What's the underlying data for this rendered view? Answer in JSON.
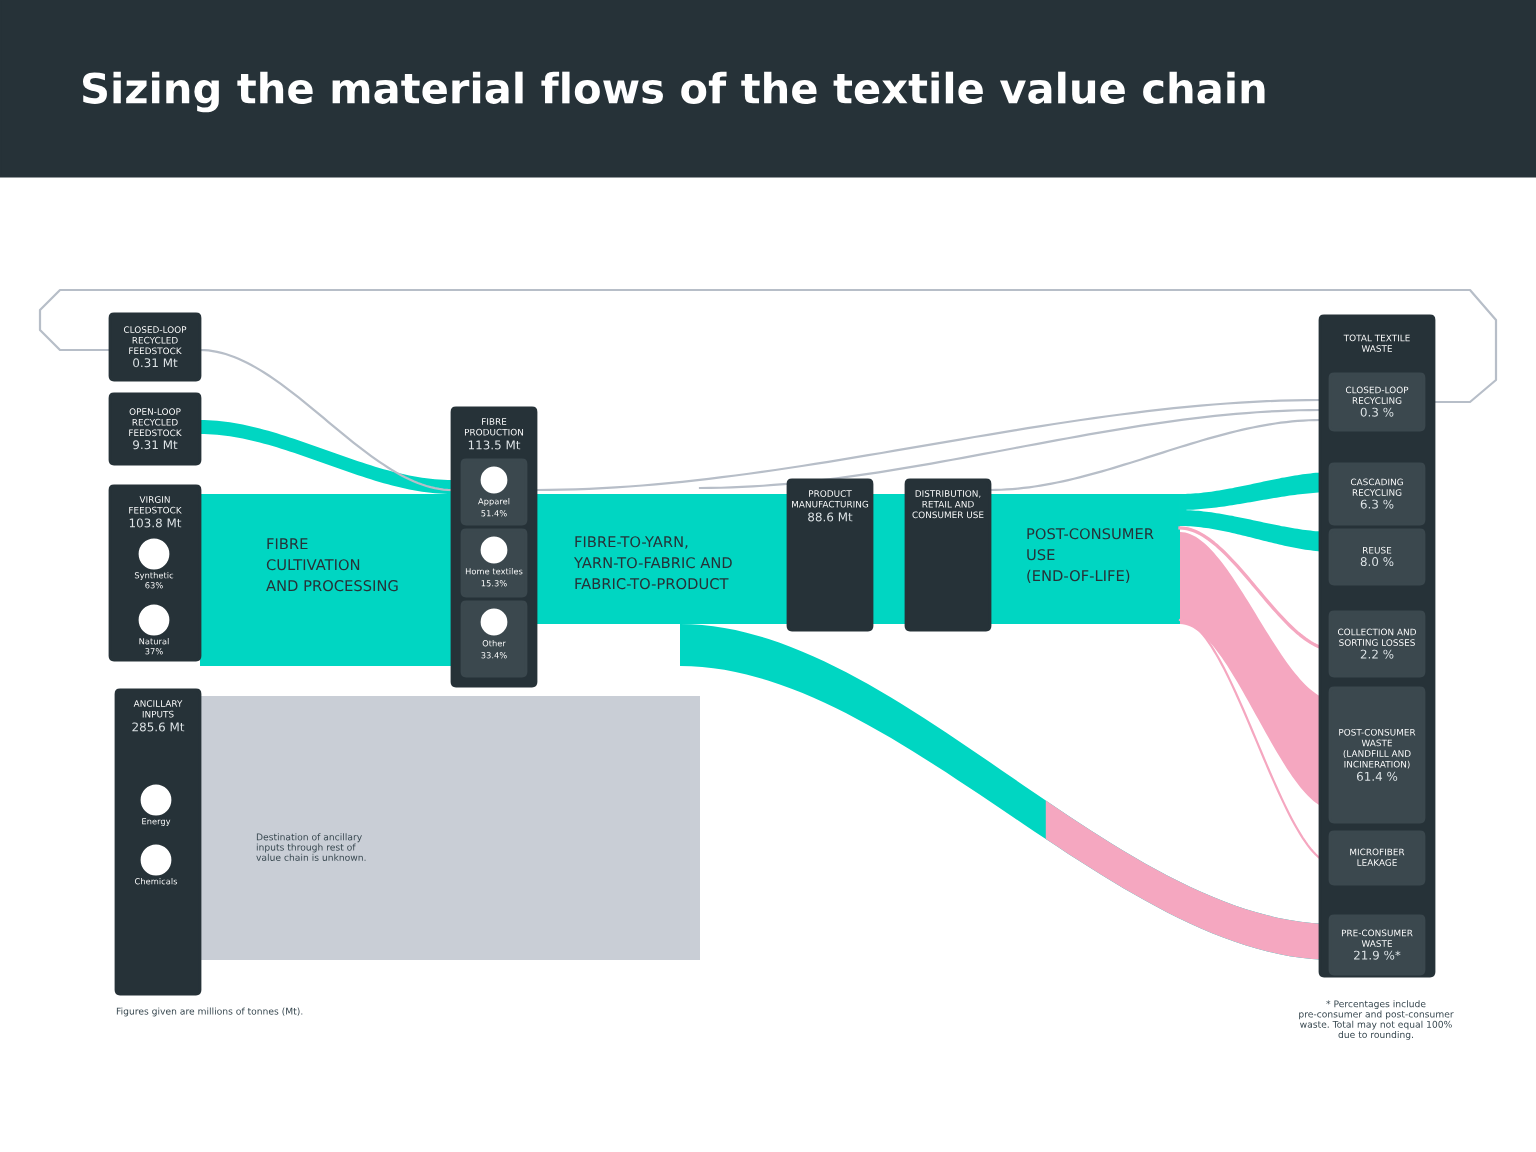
{
  "chart_data": {
    "type": "other",
    "title": "Sizing the material flows of the textile value chain",
    "categories": [
      "CLOSED-LOOP RECYCLED FEEDSTOCK",
      "OPEN-LOOP RECYCLED FEEDSTOCK",
      "VIRGIN FEEDSTOCK",
      "ANCILLARY INPUTS",
      "FIBRE PRODUCTION",
      "PRODUCT MANUFACTURING",
      "DISTRIBUTION, RETAIL AND CONSUMER USE",
      "CLOSED-LOOP RECYCLING",
      "CASCADING RECYCLING",
      "REUSE",
      "COLLECTION AND SORTING LOSSES",
      "POST-CONSUMER WASTE (LANDFILL AND INCINERATION)",
      "MICROFIBER LEAKAGE",
      "PRE-CONSUMER WASTE",
      "Synthetic",
      "Natural",
      "Apparel",
      "Home textiles",
      "Other",
      "Energy",
      "Chemicals"
    ],
    "values": [
      0.31,
      9.31,
      103.8,
      285.6,
      113.5,
      88.6,
      null,
      0.3,
      6.3,
      8.0,
      2.2,
      61.4,
      null,
      21.9,
      63,
      37,
      51.4,
      15.3,
      33.4,
      null,
      null
    ],
    "value_labels": [
      "0.31 Mt",
      "9.31 Mt",
      "103.8 Mt",
      "285.6 Mt",
      "113.5 Mt",
      "88.6 Mt",
      null,
      "0.3 %",
      "6.3 %",
      "8.0 %",
      "2.2 %",
      "61.4 %",
      null,
      "21.9 %*",
      "63%",
      "37%",
      "51.4%",
      "15.3%",
      "33.4%",
      null,
      null
    ],
    "colors": [
      "#263238",
      "#263238",
      "#263238",
      "#263238",
      "#263238",
      "#263238",
      "#263238",
      "#3b484e",
      "#3b484e",
      "#3b484e",
      "#3b484e",
      "#3b484e",
      "#3b484e",
      "#3b484e",
      "#ffffff",
      "#ffffff",
      "#3b484e",
      "#3b484e",
      "#3b484e",
      "#ffffff",
      "#ffffff"
    ],
    "annotations": [
      "TOTAL TEXTILE WASTE",
      "FIBRE CULTIVATION AND PROCESSING",
      "FIBRE-TO-YARN, YARN-TO-FABRIC AND FABRIC-TO-PRODUCT",
      "POST-CONSUMER USE (END-OF-LIFE)",
      "Destination of ancillary inputs through rest of value chain is unknown.",
      "Figures given are millions of tonnes (Mt).",
      "* Percentages include pre-consumer and post-consumer waste. Total may not equal 100% due to rounding."
    ]
  }
}
